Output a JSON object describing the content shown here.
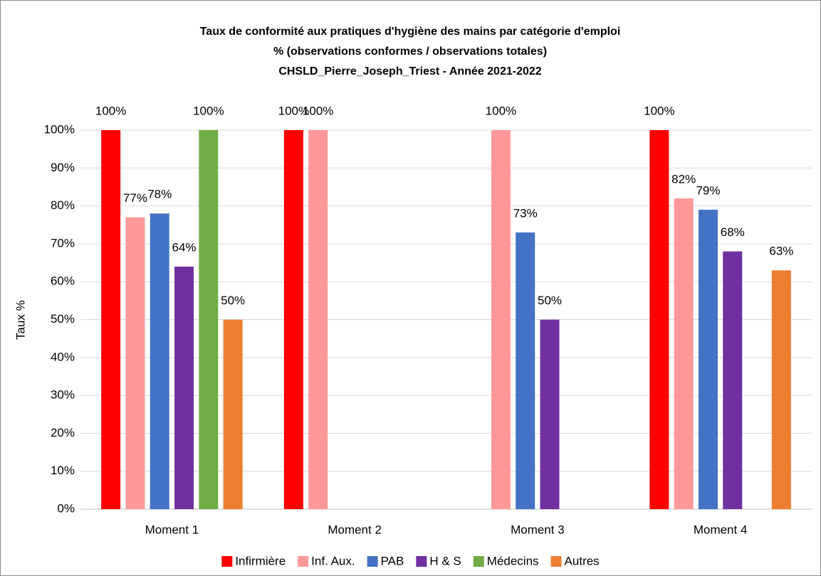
{
  "chart_data": {
    "type": "bar",
    "title": [
      "Taux de conformité aux pratiques d'hygiène des mains par catégorie d'emploi",
      "% (observations conformes / observations totales)",
      "CHSLD_Pierre_Joseph_Triest - Année 2021-2022"
    ],
    "ylabel": "Taux %",
    "categories": [
      "Moment 1",
      "Moment 2",
      "Moment 3",
      "Moment 4"
    ],
    "series": [
      {
        "name": "Infirmière",
        "color": "#ff0000",
        "values": [
          100,
          100,
          null,
          100
        ],
        "value_labels": [
          "100%",
          "100%",
          null,
          "100%"
        ]
      },
      {
        "name": "Inf. Aux.",
        "color": "#ff9999",
        "values": [
          77,
          100,
          100,
          82
        ],
        "value_labels": [
          "77%",
          "100%",
          "100%",
          "82%"
        ]
      },
      {
        "name": "PAB",
        "color": "#4472c4",
        "values": [
          78,
          null,
          73,
          79
        ],
        "value_labels": [
          "78%",
          null,
          "73%",
          "79%"
        ]
      },
      {
        "name": "H & S",
        "color": "#7030a0",
        "values": [
          64,
          null,
          50,
          68
        ],
        "value_labels": [
          "64%",
          null,
          "50%",
          "68%"
        ]
      },
      {
        "name": "Médecins",
        "color": "#70ad47",
        "values": [
          100,
          null,
          null,
          null
        ],
        "value_labels": [
          "100%",
          null,
          null,
          null
        ]
      },
      {
        "name": "Autres",
        "color": "#ed7d31",
        "values": [
          50,
          null,
          null,
          63
        ],
        "value_labels": [
          "50%",
          null,
          null,
          "63%"
        ]
      }
    ],
    "ylim": [
      0,
      100
    ],
    "yticks": [
      {
        "value": 0,
        "label": "0%"
      },
      {
        "value": 10,
        "label": "10%"
      },
      {
        "value": 20,
        "label": "20%"
      },
      {
        "value": 30,
        "label": "30%"
      },
      {
        "value": 40,
        "label": "40%"
      },
      {
        "value": 50,
        "label": "50%"
      },
      {
        "value": 60,
        "label": "60%"
      },
      {
        "value": 70,
        "label": "70%"
      },
      {
        "value": 80,
        "label": "80%"
      },
      {
        "value": 90,
        "label": "90%"
      },
      {
        "value": 100,
        "label": "100%"
      }
    ],
    "grid": true,
    "legend": "bottom"
  }
}
